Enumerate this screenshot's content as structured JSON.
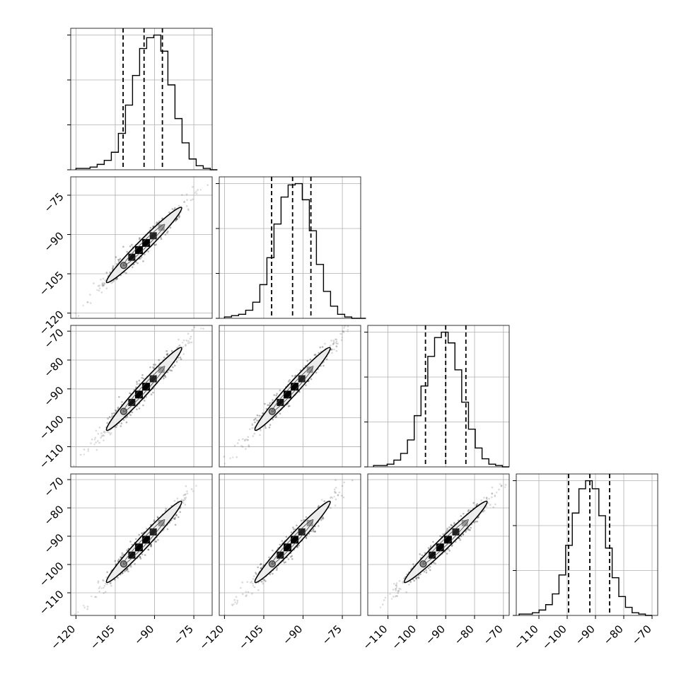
{
  "chart_data": {
    "type": "corner",
    "grid": true,
    "variables": [
      {
        "lim": [
          -122,
          -68
        ],
        "ticks": [
          -120,
          -105,
          -90,
          -75
        ],
        "tick_labels": [
          "−120",
          "−105",
          "−90",
          "−75"
        ]
      },
      {
        "lim": [
          -122,
          -68
        ],
        "ticks": [
          -120,
          -105,
          -90,
          -75
        ],
        "tick_labels": [
          "−120",
          "−105",
          "−90",
          "−75"
        ]
      },
      {
        "lim": [
          -117,
          -68
        ],
        "ticks": [
          -110,
          -100,
          -90,
          -80,
          -70
        ],
        "tick_labels": [
          "−110",
          "−100",
          "−90",
          "−80",
          "−70"
        ]
      },
      {
        "lim": [
          -118,
          -68
        ],
        "ticks": [
          -110,
          -100,
          -90,
          -80,
          -70
        ],
        "tick_labels": [
          "−110",
          "−100",
          "−90",
          "−80",
          "−70"
        ]
      }
    ],
    "histograms": [
      {
        "bin_start": -120,
        "bin_width": 2.7,
        "quantiles": [
          -102,
          -94,
          -87
        ],
        "counts": [
          1,
          1,
          2,
          4,
          7,
          13,
          27,
          48,
          70,
          90,
          98,
          100,
          88,
          63,
          38,
          20,
          8,
          3,
          1,
          0
        ]
      },
      {
        "bin_start": -120,
        "bin_width": 2.7,
        "quantiles": [
          -102,
          -94,
          -87
        ],
        "counts": [
          1,
          2,
          3,
          6,
          12,
          25,
          45,
          70,
          90,
          99,
          100,
          88,
          65,
          40,
          20,
          9,
          3,
          1,
          0,
          0
        ]
      },
      {
        "bin_start": -115,
        "bin_width": 2.35,
        "quantiles": [
          -97,
          -90,
          -83
        ],
        "counts": [
          1,
          1,
          2,
          5,
          10,
          20,
          38,
          60,
          82,
          96,
          100,
          92,
          72,
          48,
          28,
          14,
          6,
          2,
          1,
          0
        ]
      },
      {
        "bin_start": -117,
        "bin_width": 2.35,
        "quantiles": [
          -99.5,
          -92,
          -85
        ],
        "counts": [
          1,
          1,
          2,
          4,
          8,
          16,
          30,
          52,
          76,
          94,
          100,
          94,
          74,
          50,
          28,
          14,
          6,
          2,
          1,
          0
        ]
      }
    ],
    "pairs": [
      {
        "x": 0,
        "y": 1,
        "center": [
          -94,
          -94
        ],
        "spread": 6.5,
        "extent": [
          -121,
          -72
        ]
      },
      {
        "x": 0,
        "y": 2,
        "center": [
          -94,
          -90
        ],
        "spread": 6.5,
        "extent": [
          -121,
          -72
        ]
      },
      {
        "x": 1,
        "y": 2,
        "center": [
          -94,
          -90
        ],
        "spread": 6.5,
        "extent": [
          -121,
          -72
        ]
      },
      {
        "x": 0,
        "y": 3,
        "center": [
          -94,
          -92
        ],
        "spread": 6.5,
        "extent": [
          -121,
          -72
        ]
      },
      {
        "x": 1,
        "y": 3,
        "center": [
          -94,
          -92
        ],
        "spread": 6.5,
        "extent": [
          -121,
          -72
        ]
      },
      {
        "x": 2,
        "y": 3,
        "center": [
          -90,
          -92
        ],
        "spread": 6.5,
        "extent": [
          -117,
          -69
        ]
      }
    ]
  }
}
